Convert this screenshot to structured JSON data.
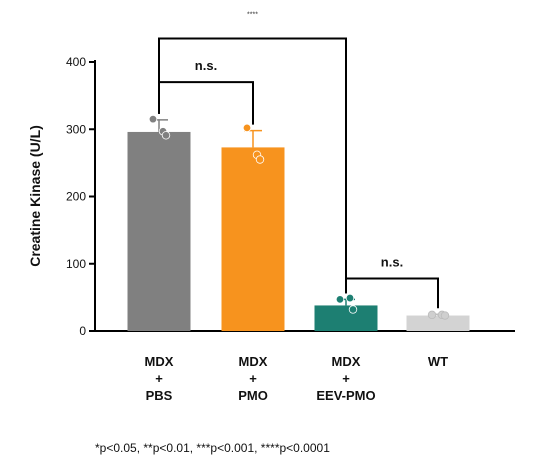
{
  "chart_data": {
    "type": "bar",
    "title": "",
    "xlabel": "",
    "ylabel": "Creatine Kinase (U/L)",
    "ylim": [
      0,
      400
    ],
    "yticks": [
      0,
      100,
      200,
      300,
      400
    ],
    "grid": false,
    "categories": [
      {
        "lines": [
          "MDX",
          "+",
          "PBS"
        ],
        "value": 296,
        "error": 18,
        "color": "#808080",
        "points": [
          315,
          297,
          291
        ]
      },
      {
        "lines": [
          "MDX",
          "+",
          "PMO"
        ],
        "value": 273,
        "error": 25,
        "color": "#f7931e",
        "points": [
          302,
          262,
          255
        ]
      },
      {
        "lines": [
          "MDX",
          "+",
          "EEV-PMO"
        ],
        "value": 38,
        "error": 9,
        "color": "#1d7f72",
        "points": [
          47,
          49,
          32
        ]
      },
      {
        "lines": [
          "WT"
        ],
        "value": 23,
        "error": 2,
        "color": "#d3d3d3",
        "points": [
          24,
          24,
          23
        ]
      }
    ],
    "significance": [
      {
        "from": 0,
        "to": 1,
        "label": "n.s.",
        "y": 370
      },
      {
        "from": 2,
        "to": 3,
        "label": "n.s.",
        "y": 78
      },
      {
        "from": 0,
        "to": 2,
        "label": "****",
        "y": 435
      }
    ],
    "footnote": "*p<0.05, **p<0.01, ***p<0.001, ****p<0.0001"
  }
}
